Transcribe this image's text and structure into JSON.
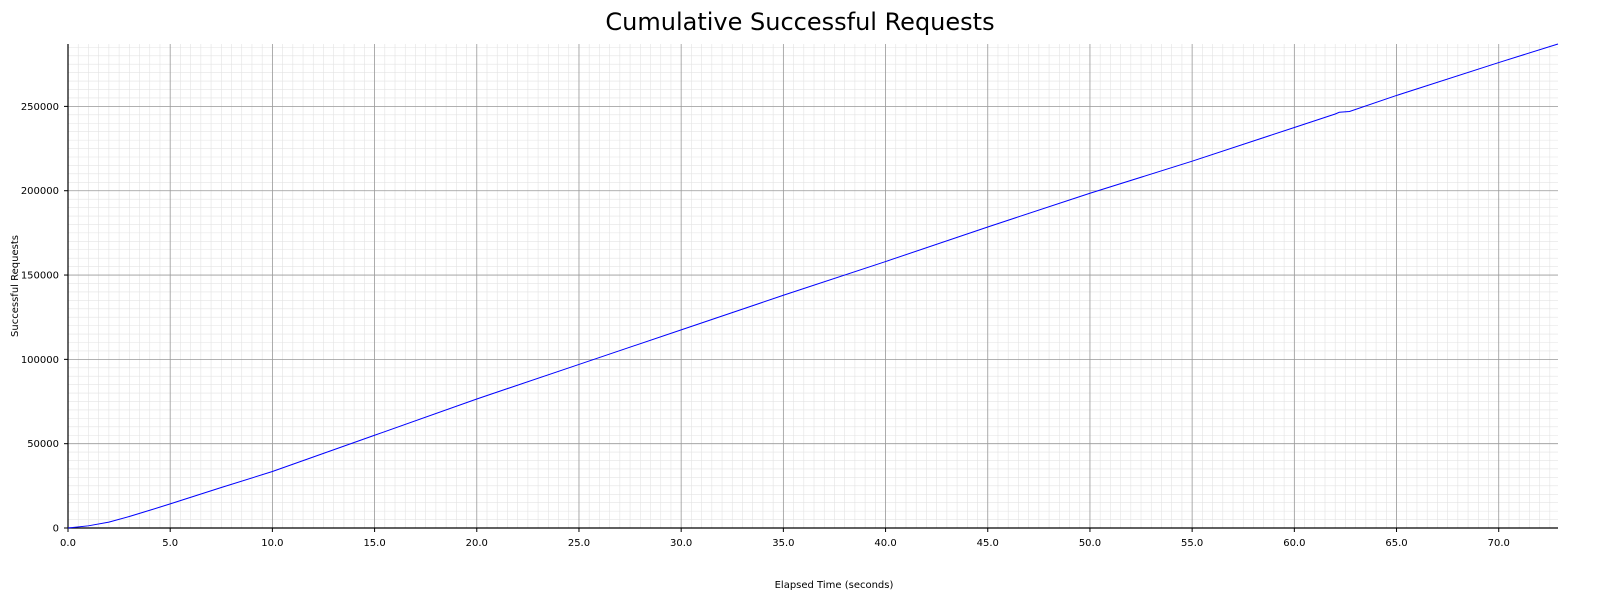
{
  "chart_data": {
    "type": "line",
    "title": "Cumulative Successful Requests",
    "xlabel": "Elapsed Time (seconds)",
    "ylabel": "Successful Requests",
    "xlim": [
      0,
      72.9
    ],
    "ylim": [
      0,
      287000
    ],
    "x_ticks": [
      "0.0",
      "5.0",
      "10.0",
      "15.0",
      "20.0",
      "25.0",
      "30.0",
      "35.0",
      "40.0",
      "45.0",
      "50.0",
      "55.0",
      "60.0",
      "65.0",
      "70.0"
    ],
    "y_ticks": [
      "0",
      "50000",
      "100000",
      "150000",
      "200000",
      "250000"
    ],
    "grid": true,
    "minor_grid": true,
    "series": [
      {
        "color": "#0000ff",
        "x": [
          0,
          1,
          2,
          3,
          4,
          5,
          7.5,
          10,
          15,
          20,
          25,
          30,
          35,
          40,
          45,
          50,
          55,
          60,
          62,
          62.2,
          62.7,
          65,
          70,
          72.9
        ],
        "y": [
          0,
          1300,
          3500,
          6800,
          10500,
          14300,
          24000,
          33500,
          55000,
          76500,
          97000,
          117500,
          138000,
          158000,
          178500,
          198500,
          217500,
          237500,
          245500,
          246500,
          247000,
          256500,
          276000,
          287000
        ]
      }
    ]
  }
}
